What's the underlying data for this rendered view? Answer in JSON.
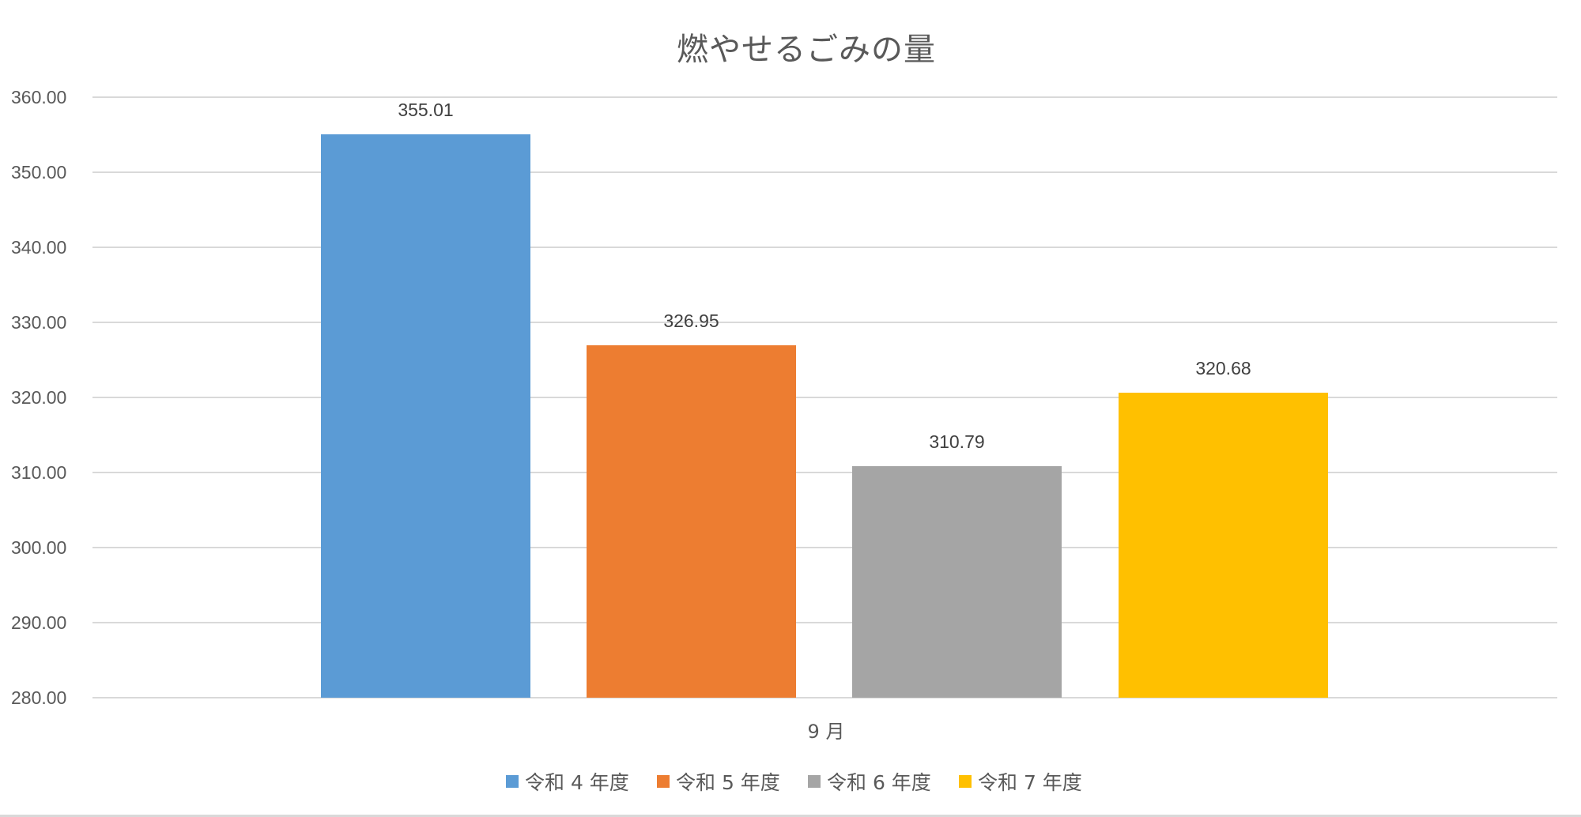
{
  "chart_data": {
    "type": "bar",
    "title": "燃やせるごみの量",
    "categories": [
      "9 月"
    ],
    "series": [
      {
        "name": "令和 4 年度",
        "values": [
          355.01
        ],
        "color": "#5B9BD5"
      },
      {
        "name": "令和 5 年度",
        "values": [
          326.95
        ],
        "color": "#ED7D31"
      },
      {
        "name": "令和 6 年度",
        "values": [
          310.79
        ],
        "color": "#A5A5A5"
      },
      {
        "name": "令和 7 年度",
        "values": [
          320.68
        ],
        "color": "#FFC000"
      }
    ],
    "xlabel": "",
    "ylabel": "",
    "ylim": [
      280,
      360
    ],
    "yticks": [
      "360.00",
      "350.00",
      "340.00",
      "330.00",
      "320.00",
      "310.00",
      "300.00",
      "290.00",
      "280.00"
    ],
    "data_labels": [
      "355.01",
      "326.95",
      "310.79",
      "320.68"
    ],
    "grid": true,
    "legend_position": "bottom"
  },
  "title": "燃やせるごみの量",
  "x_category": "9 月",
  "legend": [
    {
      "label": "令和 4 年度",
      "color": "#5B9BD5"
    },
    {
      "label": "令和 5 年度",
      "color": "#ED7D31"
    },
    {
      "label": "令和 6 年度",
      "color": "#A5A5A5"
    },
    {
      "label": "令和 7 年度",
      "color": "#FFC000"
    }
  ]
}
